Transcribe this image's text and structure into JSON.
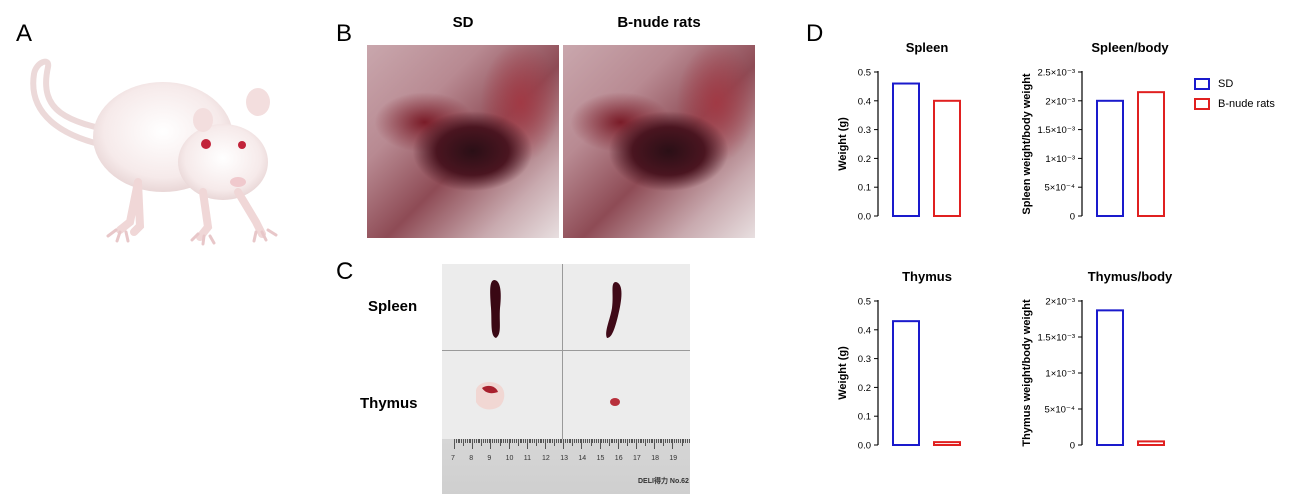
{
  "panels": {
    "A": "A",
    "B": "B",
    "C": "C",
    "D": "D"
  },
  "panel_b": {
    "titles": [
      "SD",
      "B-nude rats"
    ]
  },
  "panel_c": {
    "labels": [
      "Spleen",
      "Thymus"
    ],
    "ruler_numbers": [
      "7",
      "8",
      "9",
      "10",
      "11",
      "12",
      "13",
      "14",
      "15",
      "16",
      "17",
      "18",
      "19"
    ],
    "brand_text": "DELI得力 No.62"
  },
  "legend": {
    "entries": [
      {
        "name": "SD",
        "color": "#1a1acc"
      },
      {
        "name": "B-nude rats",
        "color": "#e02020"
      }
    ]
  },
  "chart_data": [
    {
      "type": "bar",
      "title": "Spleen",
      "ylabel": "Weight (g)",
      "categories": [
        "SD",
        "B-nude rats"
      ],
      "values": [
        0.46,
        0.4
      ],
      "ylim": [
        0,
        0.5
      ],
      "ytick_labels": [
        "0.0",
        "0.1",
        "0.2",
        "0.3",
        "0.4",
        "0.5"
      ],
      "ytick_values": [
        0,
        0.1,
        0.2,
        0.3,
        0.4,
        0.5
      ]
    },
    {
      "type": "bar",
      "title": "Spleen/body",
      "ylabel": "Spleen weight/body weight",
      "categories": [
        "SD",
        "B-nude rats"
      ],
      "values": [
        0.002,
        0.00215
      ],
      "ylim": [
        0,
        0.0025
      ],
      "ytick_labels": [
        "0",
        "5×10⁻⁴",
        "1×10⁻³",
        "1.5×10⁻³",
        "2×10⁻³",
        "2.5×10⁻³"
      ],
      "ytick_values": [
        0,
        0.0005,
        0.001,
        0.0015,
        0.002,
        0.0025
      ]
    },
    {
      "type": "bar",
      "title": "Thymus",
      "ylabel": "Weight (g)",
      "categories": [
        "SD",
        "B-nude rats"
      ],
      "values": [
        0.43,
        0.01
      ],
      "ylim": [
        0,
        0.5
      ],
      "ytick_labels": [
        "0.0",
        "0.1",
        "0.2",
        "0.3",
        "0.4",
        "0.5"
      ],
      "ytick_values": [
        0,
        0.1,
        0.2,
        0.3,
        0.4,
        0.5
      ]
    },
    {
      "type": "bar",
      "title": "Thymus/body",
      "ylabel": "Thymus weight/body weight",
      "categories": [
        "SD",
        "B-nude rats"
      ],
      "values": [
        0.00187,
        5e-05
      ],
      "ylim": [
        0,
        0.002
      ],
      "ytick_labels": [
        "0",
        "5×10⁻⁴",
        "1×10⁻³",
        "1.5×10⁻³",
        "2×10⁻³"
      ],
      "ytick_values": [
        0,
        0.0005,
        0.001,
        0.0015,
        0.002
      ]
    }
  ]
}
